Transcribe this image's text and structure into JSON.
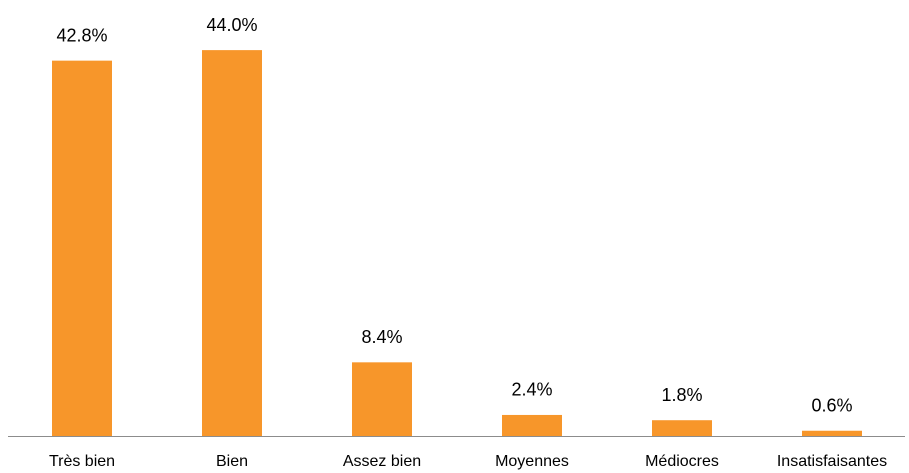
{
  "chart_data": {
    "type": "bar",
    "categories": [
      "Très bien",
      "Bien",
      "Assez bien",
      "Moyennes",
      "Médiocres",
      "Insatisfaisantes"
    ],
    "values": [
      42.8,
      44.0,
      8.4,
      2.4,
      1.8,
      0.6
    ],
    "value_labels": [
      "42.8%",
      "44.0%",
      "8.4%",
      "2.4%",
      "1.8%",
      "0.6%"
    ],
    "color": "#f7962a"
  }
}
